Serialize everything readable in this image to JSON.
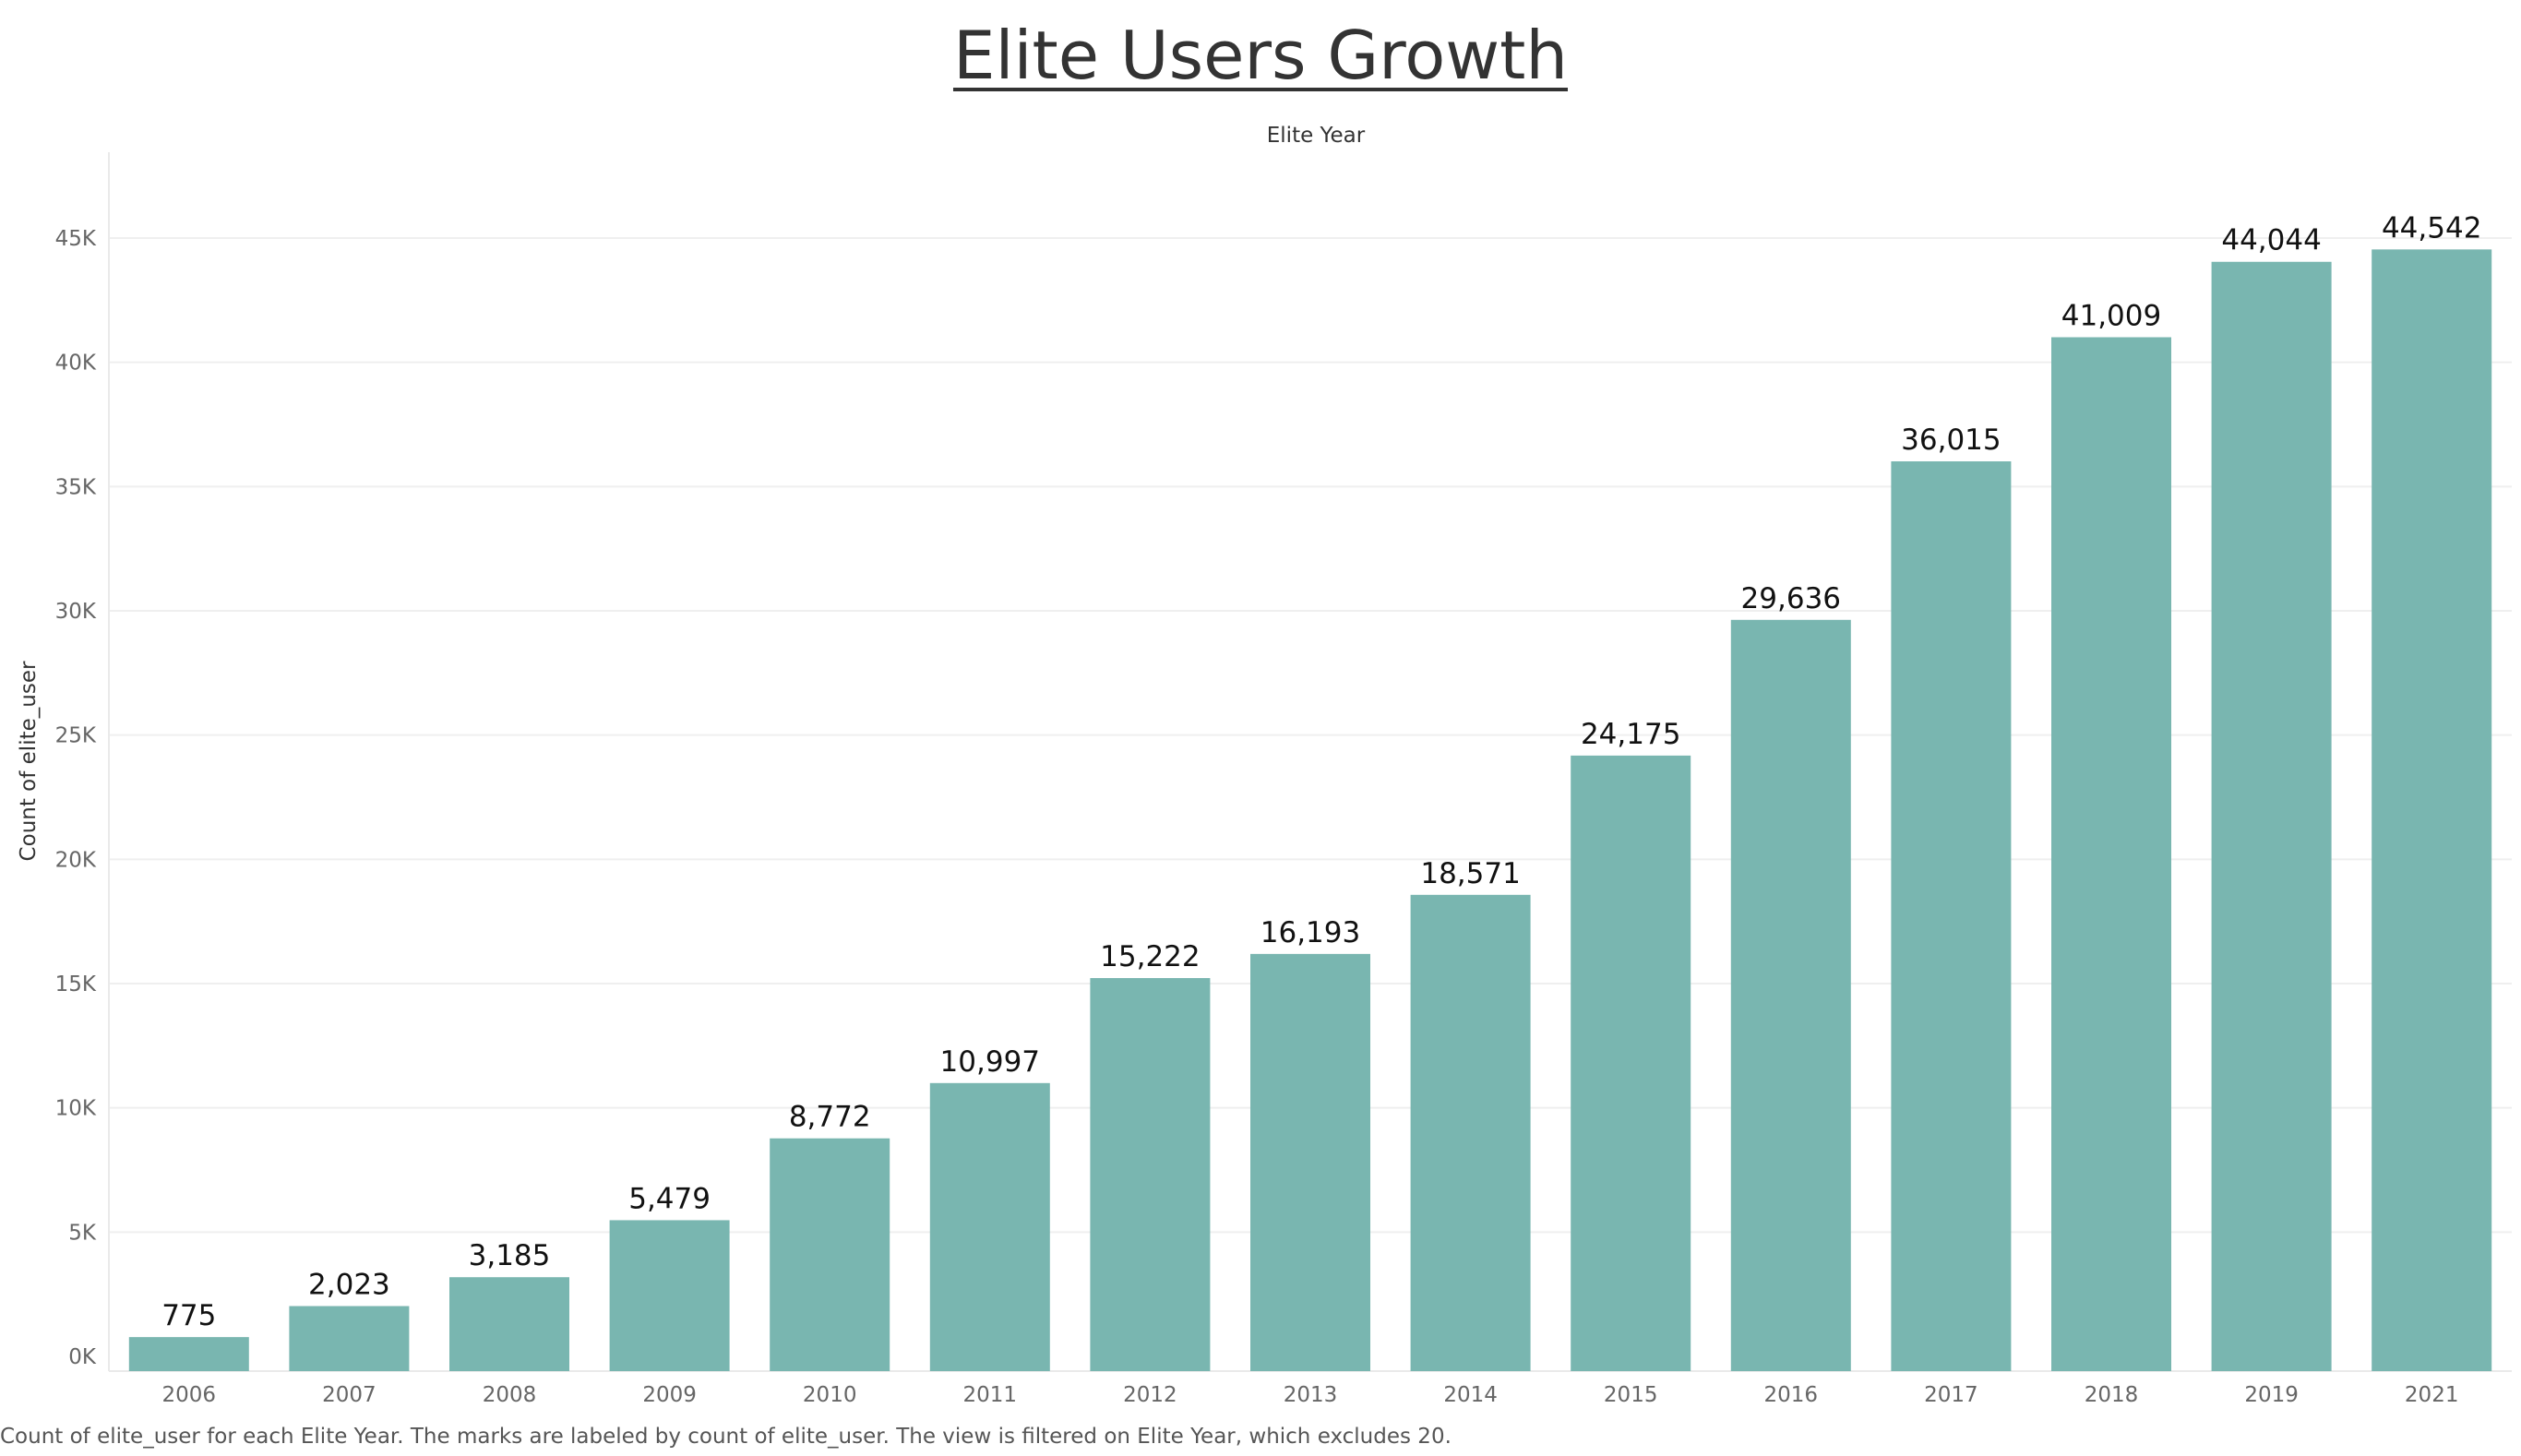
{
  "chart_data": {
    "type": "bar",
    "title": "Elite Users Growth",
    "xlabel": "Elite Year",
    "ylabel": "Count of elite_user",
    "categories": [
      "2006",
      "2007",
      "2008",
      "2009",
      "2010",
      "2011",
      "2012",
      "2013",
      "2014",
      "2015",
      "2016",
      "2017",
      "2018",
      "2019",
      "2021"
    ],
    "values": [
      775,
      2023,
      3185,
      5479,
      8772,
      10997,
      15222,
      16193,
      18571,
      24175,
      29636,
      36015,
      41009,
      44044,
      44542
    ],
    "value_labels": [
      "775",
      "2,023",
      "3,185",
      "5,479",
      "8,772",
      "10,997",
      "15,222",
      "16,193",
      "18,571",
      "24,175",
      "29,636",
      "36,015",
      "41,009",
      "44,044",
      "44,542"
    ],
    "yticks": [
      0,
      5000,
      10000,
      15000,
      20000,
      25000,
      30000,
      35000,
      40000,
      45000
    ],
    "ytick_labels": [
      "0K",
      "5K",
      "10K",
      "15K",
      "20K",
      "25K",
      "30K",
      "35K",
      "40K",
      "45K"
    ],
    "ylim": [
      0,
      48000
    ],
    "grid": true,
    "bar_color": "#79b6b0",
    "caption": "Count of elite_user for each Elite Year.  The marks are labeled by count of elite_user. The view is filtered on Elite Year, which excludes 20."
  }
}
